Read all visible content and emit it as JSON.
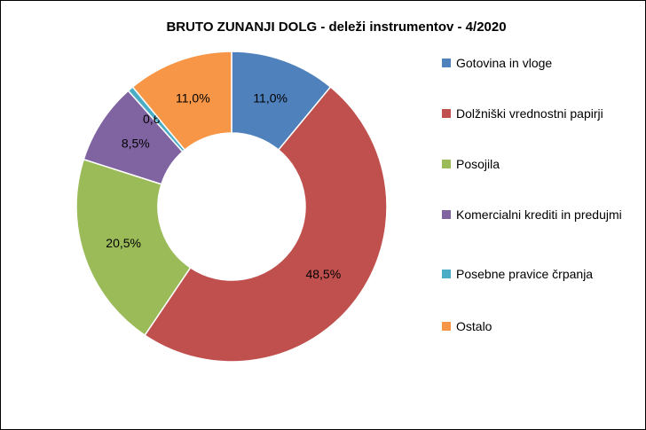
{
  "chart_data": {
    "type": "donut",
    "title": "BRUTO ZUNANJI DOLG - deleži instrumentov - 4/2020",
    "categories": [
      "Gotovina in vloge",
      "Dolžniški vrednostni papirji",
      "Posojila",
      "Komercialni krediti in predujmi",
      "Posebne pravice črpanja",
      "Ostalo"
    ],
    "values": [
      11.0,
      48.5,
      20.5,
      8.5,
      0.6,
      11.0
    ],
    "value_labels": [
      "11,0%",
      "48,5%",
      "20,5%",
      "8,5%",
      "0,6%",
      "11,0%"
    ],
    "colors": [
      "#4f81bd",
      "#c0504d",
      "#9bbb59",
      "#8064a2",
      "#4bacc6",
      "#f79646"
    ],
    "legend": "right"
  }
}
